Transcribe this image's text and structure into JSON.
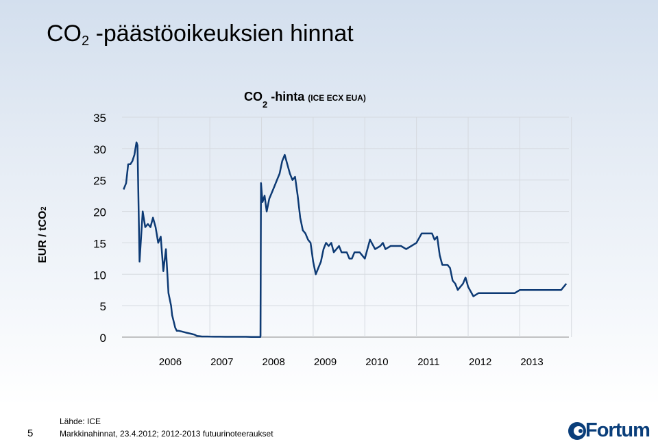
{
  "slide": {
    "title_main": "CO",
    "title_sub": "2",
    "title_rest": " -päästöoikeuksien hinnat",
    "page_number": "5",
    "source_line1": "Lähde: ICE",
    "source_line2": "Markkinahinnat, 23.4.2012; 2012-2013 futuurinoteeraukset",
    "logo_text": "Fortum"
  },
  "chart_data": {
    "type": "line",
    "title_main": "CO",
    "title_sub": "2",
    "title_mid": " -hinta ",
    "title_small": "(ICE ECX EUA)",
    "ylabel_main": "EUR / tCO",
    "ylabel_sub": "2",
    "ylim": [
      0,
      35
    ],
    "yticks": [
      "0",
      "5",
      "10",
      "15",
      "20",
      "25",
      "30",
      "35"
    ],
    "xlim": [
      2005.3,
      2013.95
    ],
    "xticks": [
      "2006",
      "2007",
      "2008",
      "2009",
      "2010",
      "2011",
      "2012",
      "2013"
    ],
    "grid": true,
    "line_color": "#0d3a74",
    "series": [
      {
        "x": [
          2005.33,
          2005.38,
          2005.42,
          2005.46,
          2005.5,
          2005.54,
          2005.58,
          2005.6,
          2005.64,
          2005.7,
          2005.75,
          2005.8,
          2005.85,
          2005.9,
          2005.95,
          2006.0,
          2006.05,
          2006.1,
          2006.15,
          2006.2,
          2006.25,
          2006.27,
          2006.3,
          2006.33,
          2006.36,
          2006.4,
          2006.45,
          2006.5,
          2006.55,
          2006.6,
          2006.65,
          2006.7,
          2006.75,
          2006.8,
          2006.85,
          2006.9,
          2006.95,
          2007.0,
          2007.1,
          2007.2,
          2007.3,
          2007.4,
          2007.5,
          2007.6,
          2007.7,
          2007.8,
          2007.9,
          2007.98,
          2007.99,
          2008.02,
          2008.06,
          2008.1,
          2008.15,
          2008.2,
          2008.25,
          2008.3,
          2008.35,
          2008.4,
          2008.45,
          2008.5,
          2008.55,
          2008.6,
          2008.65,
          2008.7,
          2008.75,
          2008.8,
          2008.85,
          2008.9,
          2008.95,
          2009.0,
          2009.05,
          2009.1,
          2009.15,
          2009.2,
          2009.25,
          2009.3,
          2009.35,
          2009.4,
          2009.45,
          2009.5,
          2009.55,
          2009.6,
          2009.65,
          2009.7,
          2009.75,
          2009.8,
          2009.85,
          2009.9,
          2009.95,
          2010.0,
          2010.1,
          2010.2,
          2010.3,
          2010.35,
          2010.4,
          2010.5,
          2010.6,
          2010.7,
          2010.8,
          2010.9,
          2011.0,
          2011.1,
          2011.2,
          2011.25,
          2011.3,
          2011.35,
          2011.4,
          2011.45,
          2011.5,
          2011.55,
          2011.6,
          2011.65,
          2011.7,
          2011.75,
          2011.8,
          2011.85,
          2011.9,
          2011.95,
          2012.0,
          2012.1,
          2012.2,
          2012.3,
          2012.32,
          2012.5,
          2012.7,
          2012.9,
          2013.0,
          2013.2,
          2013.5,
          2013.8,
          2013.9
        ],
        "values": [
          23.5,
          24.5,
          27.5,
          27.5,
          28,
          29,
          31,
          30.5,
          12,
          20,
          17.5,
          18,
          17.5,
          19,
          17.5,
          15,
          16,
          10.5,
          14,
          7,
          5,
          3.5,
          2.5,
          1.5,
          1,
          1,
          0.9,
          0.8,
          0.7,
          0.6,
          0.5,
          0.4,
          0.2,
          0.15,
          0.1,
          0.1,
          0.1,
          0.08,
          0.07,
          0.06,
          0.05,
          0.05,
          0.05,
          0.05,
          0.05,
          0.03,
          0.02,
          0.02,
          24.5,
          21.5,
          22.5,
          20,
          22,
          23,
          24,
          25,
          26,
          28,
          29,
          27.5,
          26,
          25,
          25.5,
          22.5,
          19,
          17,
          16.5,
          15.5,
          15,
          12,
          10,
          11,
          12,
          14,
          15,
          14.5,
          15,
          13.5,
          14,
          14.5,
          13.5,
          13.5,
          13.5,
          12.5,
          12.5,
          13.5,
          13.5,
          13.5,
          13,
          12.5,
          15.5,
          14,
          14.5,
          15,
          14,
          14.5,
          14.5,
          14.5,
          14,
          14.5,
          15,
          16.5,
          16.5,
          16.5,
          16.5,
          15.5,
          16,
          13,
          11.5,
          11.5,
          11.5,
          11,
          9,
          8.5,
          7.5,
          8,
          8.5,
          9.5,
          8,
          6.5,
          7,
          7,
          7,
          7,
          7,
          7,
          7.5,
          7.5,
          7.5,
          7.5,
          8.5
        ]
      }
    ]
  }
}
